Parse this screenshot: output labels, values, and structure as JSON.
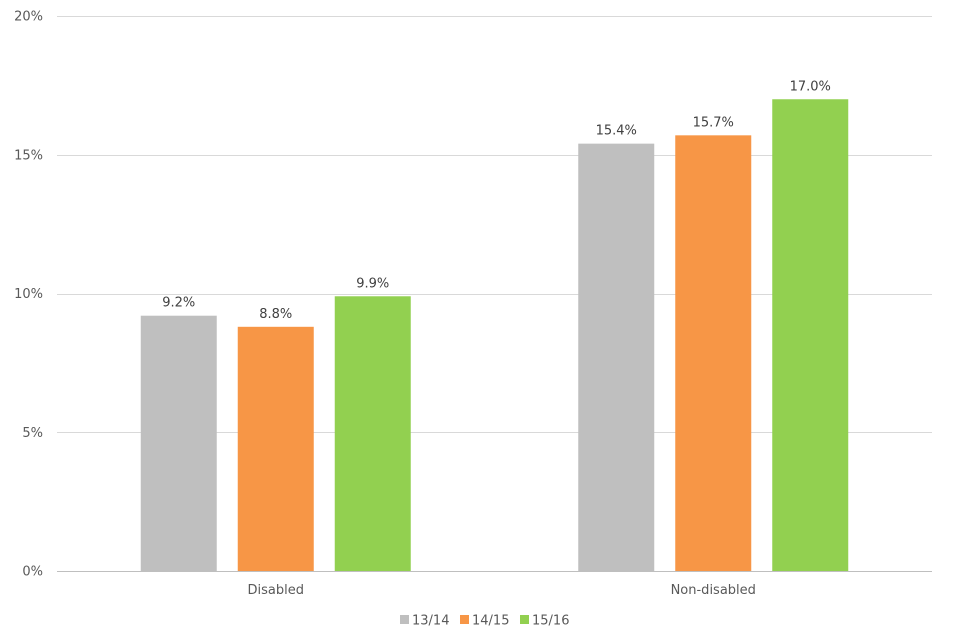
{
  "chart_data": {
    "type": "bar",
    "categories": [
      "Disabled",
      "Non-disabled"
    ],
    "series": [
      {
        "name": "13/14",
        "color": "#bfbfbf",
        "values": [
          9.2,
          15.4
        ],
        "labels": [
          "9.2%",
          "15.4%"
        ]
      },
      {
        "name": "14/15",
        "color": "#f79646",
        "values": [
          8.8,
          15.7
        ],
        "labels": [
          "8.8%",
          "15.7%"
        ]
      },
      {
        "name": "15/16",
        "color": "#92d050",
        "values": [
          9.9,
          17.0
        ],
        "labels": [
          "9.9%",
          "17.0%"
        ]
      }
    ],
    "ylim": [
      0,
      20
    ],
    "yticks": [
      0,
      5,
      10,
      15,
      20
    ],
    "ytick_labels": [
      "0%",
      "5%",
      "10%",
      "15%",
      "20%"
    ],
    "title": "",
    "xlabel": "",
    "ylabel": "",
    "grid": true,
    "gridline_color": "#d9d9d9",
    "legend_position": "bottom"
  }
}
